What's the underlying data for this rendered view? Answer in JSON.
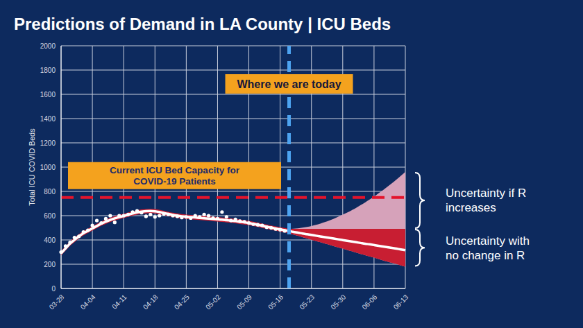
{
  "chart_data": {
    "type": "line",
    "title": "Predictions of Demand in LA County | ICU Beds",
    "y_label": "Total ICU COVID Beds",
    "categories": [
      "03-28",
      null,
      null,
      null,
      null,
      null,
      null,
      "04-04",
      null,
      null,
      null,
      null,
      null,
      null,
      "04-11",
      null,
      null,
      null,
      null,
      null,
      null,
      "04-18",
      null,
      null,
      null,
      null,
      null,
      null,
      "04-25",
      null,
      null,
      null,
      null,
      null,
      null,
      "05-02",
      null,
      null,
      null,
      null,
      null,
      null,
      "05-09",
      null,
      null,
      null,
      null,
      null,
      null,
      "05-16",
      null,
      null,
      null,
      null,
      null,
      null,
      "05-23",
      null,
      null,
      null,
      null,
      null,
      null,
      "05-30",
      null,
      null,
      null,
      null,
      null,
      null,
      "06-06",
      null,
      null,
      null,
      null,
      null,
      null,
      "06-13"
    ],
    "ylim": [
      0,
      2000
    ],
    "yticks": [
      0,
      200,
      400,
      600,
      800,
      1000,
      1200,
      1400,
      1600,
      1800,
      2000
    ],
    "grid": true,
    "series": [
      {
        "name": "Uncertainty if R increases",
        "type": "area",
        "color": "#d6a2ba",
        "values": [
          null,
          null,
          null,
          null,
          null,
          null,
          null,
          null,
          null,
          null,
          null,
          null,
          null,
          null,
          null,
          null,
          null,
          null,
          null,
          null,
          null,
          null,
          null,
          null,
          null,
          null,
          null,
          null,
          null,
          null,
          null,
          null,
          null,
          null,
          null,
          null,
          null,
          null,
          null,
          null,
          null,
          null,
          null,
          null,
          null,
          null,
          null,
          null,
          null,
          null,
          null,
          [
            455,
            491
          ],
          [
            444,
            493
          ],
          [
            434,
            496
          ],
          [
            423,
            501
          ],
          [
            413,
            507
          ],
          [
            402,
            515
          ],
          [
            392,
            524
          ],
          [
            381,
            535
          ],
          [
            370,
            547
          ],
          [
            360,
            560
          ],
          [
            349,
            575
          ],
          [
            338,
            591
          ],
          [
            328,
            608
          ],
          [
            317,
            626
          ],
          [
            307,
            645
          ],
          [
            296,
            665
          ],
          [
            285,
            687
          ],
          [
            275,
            709
          ],
          [
            264,
            733
          ],
          [
            254,
            757
          ],
          [
            243,
            784
          ],
          [
            232,
            810
          ],
          [
            222,
            838
          ],
          [
            211,
            867
          ],
          [
            201,
            897
          ],
          [
            190,
            928
          ],
          [
            180,
            960
          ]
        ]
      },
      {
        "name": "Uncertainty with no change in R",
        "type": "area",
        "color": "#c81e32",
        "values": [
          [
            272,
            308
          ],
          [
            312,
            348
          ],
          [
            352,
            388
          ],
          [
            382,
            418
          ],
          [
            412,
            448
          ],
          [
            437,
            473
          ],
          [
            457,
            493
          ],
          [
            477,
            513
          ],
          [
            497,
            533
          ],
          [
            517,
            553
          ],
          [
            532,
            568
          ],
          [
            547,
            583
          ],
          [
            560,
            596
          ],
          [
            570,
            606
          ],
          [
            580,
            616
          ],
          [
            590,
            626
          ],
          [
            600,
            636
          ],
          [
            609,
            645
          ],
          [
            615,
            651
          ],
          [
            619,
            655
          ],
          [
            620,
            656
          ],
          [
            618,
            654
          ],
          [
            612,
            648
          ],
          [
            604,
            640
          ],
          [
            596,
            632
          ],
          [
            588,
            624
          ],
          [
            582,
            618
          ],
          [
            577,
            613
          ],
          [
            573,
            609
          ],
          [
            570,
            606
          ],
          [
            567,
            603
          ],
          [
            564,
            600
          ],
          [
            561,
            597
          ],
          [
            558,
            594
          ],
          [
            555,
            591
          ],
          [
            552,
            588
          ],
          [
            549,
            585
          ],
          [
            545,
            581
          ],
          [
            541,
            577
          ],
          [
            537,
            573
          ],
          [
            532,
            568
          ],
          [
            527,
            563
          ],
          [
            521,
            557
          ],
          [
            514,
            550
          ],
          [
            507,
            543
          ],
          [
            499,
            535
          ],
          [
            491,
            527
          ],
          [
            483,
            519
          ],
          [
            476,
            512
          ],
          [
            469,
            505
          ],
          [
            462,
            498
          ],
          [
            455,
            491
          ],
          [
            444,
            492
          ],
          [
            434,
            492
          ],
          [
            423,
            492
          ],
          [
            413,
            492
          ],
          [
            402,
            492
          ],
          [
            392,
            492
          ],
          [
            381,
            492
          ],
          [
            370,
            492
          ],
          [
            360,
            492
          ],
          [
            349,
            492
          ],
          [
            338,
            492
          ],
          [
            328,
            492
          ],
          [
            317,
            492
          ],
          [
            307,
            492
          ],
          [
            296,
            492
          ],
          [
            285,
            492
          ],
          [
            275,
            492
          ],
          [
            264,
            492
          ],
          [
            254,
            492
          ],
          [
            243,
            492
          ],
          [
            232,
            492
          ],
          [
            222,
            492
          ],
          [
            211,
            492
          ],
          [
            201,
            492
          ],
          [
            190,
            492
          ],
          [
            180,
            492
          ]
        ]
      },
      {
        "type": "line",
        "color": "#ffffff",
        "line_style": "solid",
        "values": [
          290,
          330,
          370,
          400,
          430,
          455,
          475,
          495,
          515,
          535,
          550,
          565,
          578,
          588,
          598,
          608,
          618,
          627,
          633,
          637,
          638,
          636,
          630,
          622,
          614,
          606,
          600,
          595,
          591,
          588,
          585,
          582,
          579,
          576,
          573,
          570,
          567,
          563,
          559,
          555,
          550,
          545,
          539,
          532,
          525,
          517,
          509,
          501,
          494,
          487,
          480,
          473,
          466,
          460,
          453,
          447,
          441,
          435,
          429,
          423,
          417,
          411,
          405,
          399,
          393,
          387,
          381,
          375,
          369,
          364,
          358,
          352,
          346,
          340,
          334,
          328,
          322,
          316
        ]
      },
      {
        "type": "scatter",
        "color": "#ffffff",
        "marker": "circle",
        "values": [
          300,
          350,
          380,
          420,
          430,
          465,
          480,
          520,
          560,
          540,
          575,
          600,
          545,
          600,
          600,
          610,
          630,
          640,
          625,
          595,
          610,
          590,
          600,
          615,
          610,
          600,
          595,
          585,
          590,
          580,
          600,
          590,
          610,
          600,
          580,
          575,
          630,
          590,
          560,
          570,
          555,
          550,
          540,
          530,
          525,
          520,
          505,
          500,
          490,
          485,
          475,
          null,
          null,
          null,
          null,
          null,
          null,
          null,
          null,
          null,
          null,
          null,
          null,
          null,
          null,
          null,
          null,
          null,
          null,
          null,
          null,
          null,
          null,
          null,
          null,
          null,
          null,
          null
        ]
      }
    ],
    "annotations": [
      {
        "text": "Where we are today",
        "x": 51,
        "color": "#4da3f0",
        "line_style": "dashed"
      },
      {
        "text": "Current ICU Bed Capacity for COVID-19 Patients",
        "y": 750,
        "color": "#e3142c",
        "line_style": "dashed"
      }
    ]
  }
}
